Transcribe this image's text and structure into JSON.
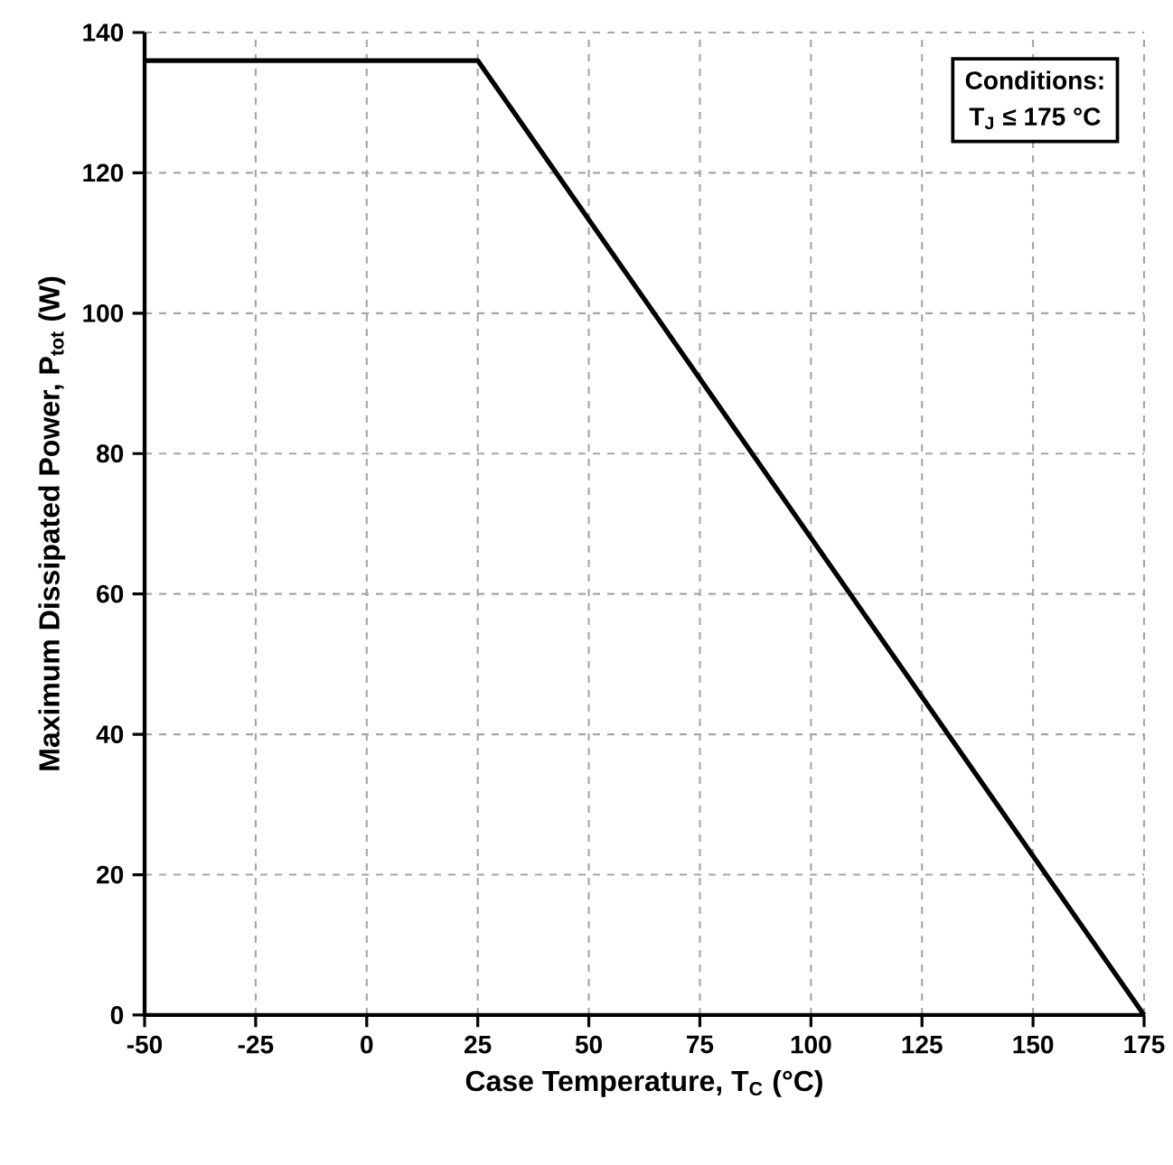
{
  "chart_data": {
    "type": "line",
    "xlabel": "Case Temperature, T$_{C}$ (°C)",
    "ylabel": "Maximum Dissipated Power, P$_{tot}$ (W)",
    "x": [
      -50,
      25,
      175
    ],
    "series": [
      {
        "color": "#000000",
        "values": [
          136,
          136,
          0
        ]
      }
    ],
    "xlim": [
      -50,
      175
    ],
    "xticks": [
      -50,
      -25,
      0,
      25,
      50,
      75,
      100,
      125,
      150,
      175
    ],
    "ylim": [
      0,
      140
    ],
    "yticks": [
      0,
      20,
      40,
      60,
      80,
      100,
      120,
      140
    ],
    "grid": true,
    "marker": "none",
    "line_style": "solid",
    "annotations": [
      "Conditions:",
      "T$_{J}$ ≤ 175 °C"
    ]
  }
}
